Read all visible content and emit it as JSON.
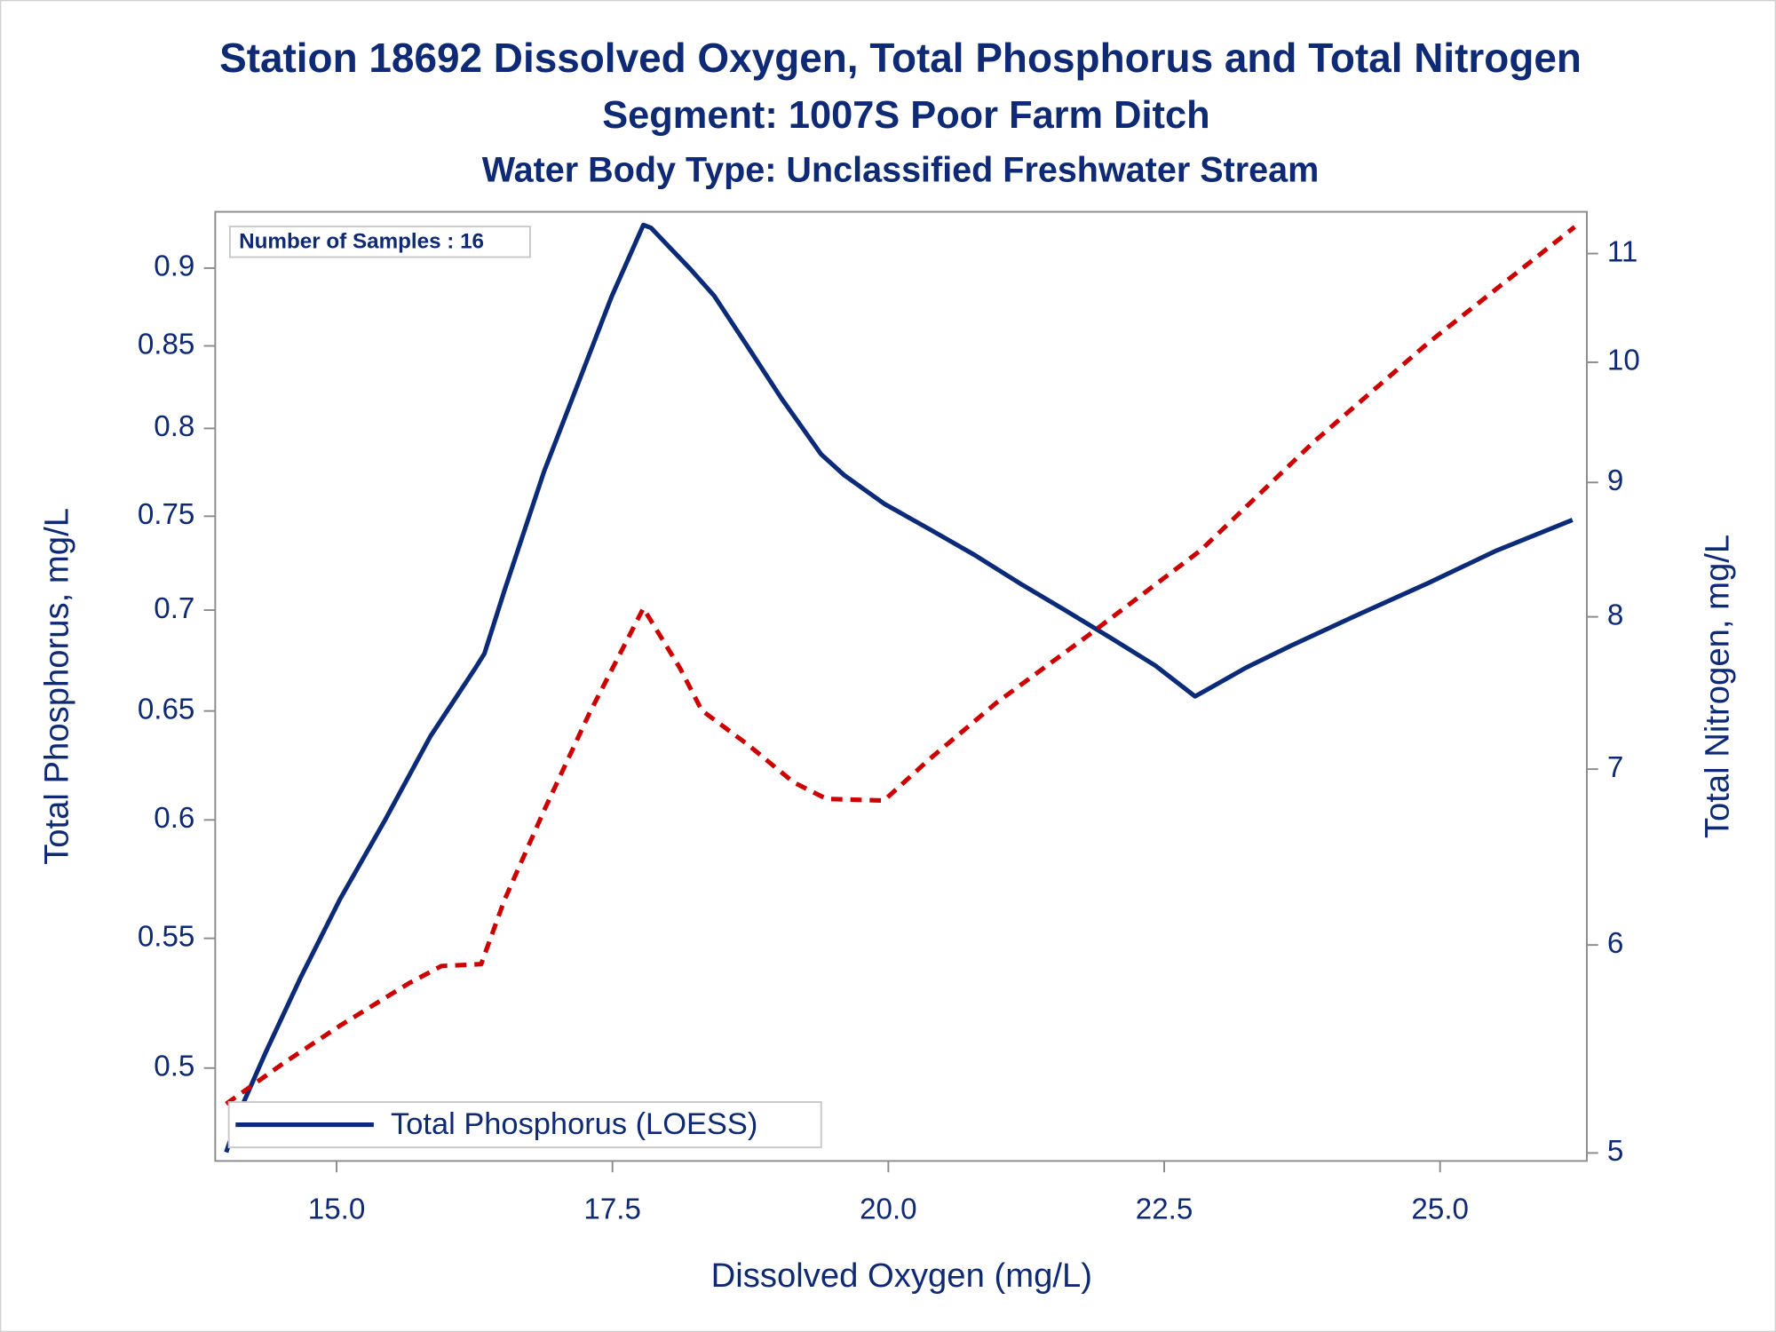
{
  "chart_data": {
    "type": "line",
    "title": "Station 18692  Dissolved Oxygen, Total Phosphorus and Total Nitrogen",
    "subtitle": "Segment: 1007S  Poor Farm Ditch",
    "subtitle2": "Water Body Type: Unclassified Freshwater Stream",
    "annotation": "Number of Samples : 16",
    "xlabel": "Dissolved Oxygen (mg/L)",
    "ylabel": "Total Phosphorus, mg/L",
    "y2label": "Total Nitrogen, mg/L",
    "xlim": [
      13.9,
      26.33
    ],
    "xticks": [
      {
        "value": 15,
        "label": "15.0"
      },
      {
        "value": 17.5,
        "label": "17.5"
      },
      {
        "value": 20,
        "label": "20.0"
      },
      {
        "value": 22.5,
        "label": "22.5"
      },
      {
        "value": 25,
        "label": "25.0"
      }
    ],
    "ylim": [
      0.467,
      0.938
    ],
    "yticks": [
      0.5,
      0.55,
      0.6,
      0.65,
      0.7,
      0.75,
      0.8,
      0.85,
      0.9
    ],
    "ylog": true,
    "y2lim": [
      4.965,
      11.41
    ],
    "y2ticks": [
      5,
      6,
      7,
      8,
      9,
      10,
      11
    ],
    "y2log": true,
    "legend": "lower left",
    "series": [
      {
        "name": "Total Phosphorus (LOESS)",
        "color": "#0b2a78",
        "dash": false,
        "x": [
          14.0,
          14.14,
          14.36,
          14.67,
          15.03,
          15.44,
          15.85,
          16.26,
          16.34,
          16.52,
          16.88,
          17.19,
          17.49,
          17.78,
          17.85,
          18.21,
          18.42,
          18.73,
          19.03,
          19.39,
          19.6,
          19.96,
          20.37,
          20.78,
          21.19,
          21.6,
          22.01,
          22.42,
          22.78,
          22.88,
          23.24,
          23.65,
          24.27,
          24.89,
          25.5,
          26.2
        ],
        "values": [
          0.47,
          0.486,
          0.506,
          0.534,
          0.566,
          0.6,
          0.638,
          0.671,
          0.678,
          0.71,
          0.775,
          0.827,
          0.881,
          0.929,
          0.927,
          0.899,
          0.882,
          0.849,
          0.818,
          0.785,
          0.773,
          0.757,
          0.743,
          0.729,
          0.714,
          0.7,
          0.686,
          0.672,
          0.657,
          0.66,
          0.671,
          0.682,
          0.698,
          0.714,
          0.731,
          0.748
        ]
      },
      {
        "color": "#cc0000",
        "dash": true,
        "axis": "y2",
        "x": [
          14.0,
          14.52,
          15.03,
          15.65,
          15.95,
          16.31,
          16.52,
          16.88,
          17.29,
          17.78,
          18.11,
          18.31,
          18.73,
          19.14,
          19.44,
          19.96,
          20.37,
          20.98,
          21.81,
          22.83,
          23.86,
          24.89,
          26.22
        ],
        "values": [
          5.22,
          5.41,
          5.59,
          5.8,
          5.89,
          5.9,
          6.24,
          6.75,
          7.35,
          8.06,
          7.65,
          7.37,
          7.15,
          6.92,
          6.82,
          6.81,
          7.06,
          7.42,
          7.87,
          8.48,
          9.33,
          10.17,
          11.26
        ]
      }
    ]
  }
}
